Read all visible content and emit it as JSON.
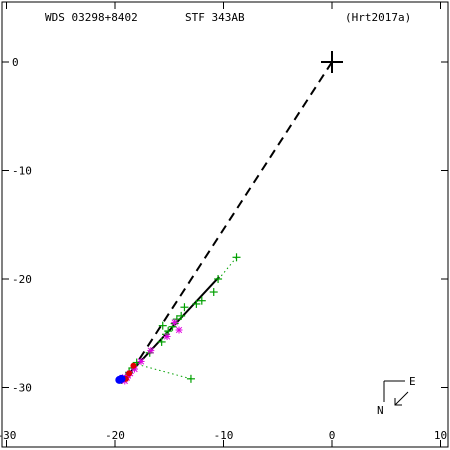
{
  "header": {
    "wds": "WDS 03298+8402",
    "stf": "STF 343AB",
    "ref": "(Hrt2017a)"
  },
  "compass": {
    "east": "E",
    "north": "N"
  },
  "chart_data": {
    "type": "scatter",
    "title": "",
    "xlabel": "",
    "ylabel": "",
    "xlim": [
      -30,
      10
    ],
    "ylim": [
      -34,
      5.5
    ],
    "grid": false,
    "legend": "none",
    "x_ticks": [
      {
        "value": -30,
        "label": "-30"
      },
      {
        "value": -20,
        "label": "-20"
      },
      {
        "value": -10,
        "label": "-10"
      },
      {
        "value": 0,
        "label": "0"
      },
      {
        "value": 10,
        "label": "10"
      }
    ],
    "y_ticks": [
      {
        "value": 0,
        "label": "0"
      },
      {
        "value": -10,
        "label": "-10"
      },
      {
        "value": -20,
        "label": "-20"
      },
      {
        "value": -30,
        "label": "-30"
      }
    ],
    "primary": {
      "x": 0,
      "y": 0,
      "marker": "plus"
    },
    "origin_line": {
      "from": [
        0,
        0
      ],
      "to": [
        -18.8,
        -29.0
      ],
      "style": "dashed",
      "color": "#000000"
    },
    "orbit_fit": {
      "from": [
        -19.5,
        -29.6
      ],
      "to": [
        -10.4,
        -19.8
      ],
      "style": "solid",
      "color": "#000000"
    },
    "green_series": {
      "color": "#00a000",
      "marker": "plus",
      "points": [
        [
          -8.8,
          -18.0
        ],
        [
          -10.5,
          -20.0
        ],
        [
          -10.9,
          -21.2
        ],
        [
          -12.0,
          -22.0
        ],
        [
          -12.5,
          -22.3
        ],
        [
          -13.6,
          -22.6
        ],
        [
          -13.9,
          -23.4
        ],
        [
          -14.3,
          -23.7
        ],
        [
          -14.5,
          -24.1
        ],
        [
          -14.7,
          -24.4
        ],
        [
          -15.1,
          -24.8
        ],
        [
          -15.6,
          -24.3
        ],
        [
          -15.3,
          -25.1
        ],
        [
          -15.7,
          -25.8
        ],
        [
          -16.8,
          -26.8
        ],
        [
          -18.0,
          -27.7
        ],
        [
          -18.4,
          -28.2
        ],
        [
          -18.7,
          -28.6
        ],
        [
          -19.0,
          -29.0
        ],
        [
          -19.4,
          -29.3
        ],
        [
          -13.0,
          -29.2
        ]
      ]
    },
    "green_residuals": [
      {
        "from": [
          -8.8,
          -18.0
        ],
        "to": [
          -10.6,
          -20.2
        ]
      },
      {
        "from": [
          -13.0,
          -29.2
        ],
        "to": [
          -18.2,
          -27.8
        ]
      }
    ],
    "magenta_series": {
      "color": "#e000e0",
      "marker": "star",
      "points": [
        [
          -14.1,
          -24.7
        ],
        [
          -14.5,
          -24.0
        ],
        [
          -15.2,
          -25.3
        ],
        [
          -16.7,
          -26.6
        ],
        [
          -17.6,
          -27.6
        ],
        [
          -18.2,
          -28.3
        ],
        [
          -18.6,
          -28.7
        ],
        [
          -18.9,
          -29.1
        ],
        [
          -19.1,
          -29.4
        ],
        [
          -19.3,
          -29.1
        ],
        [
          -18.8,
          -28.9
        ]
      ]
    },
    "red_series": {
      "color": "#e00000",
      "marker": "dot",
      "points": [
        [
          -18.3,
          -28.0
        ],
        [
          -18.7,
          -28.7
        ],
        [
          -19.0,
          -29.2
        ]
      ]
    },
    "blue_series": {
      "color": "#0000ff",
      "marker": "dot",
      "points": [
        [
          -19.6,
          -29.3
        ],
        [
          -19.4,
          -29.2
        ]
      ]
    }
  }
}
